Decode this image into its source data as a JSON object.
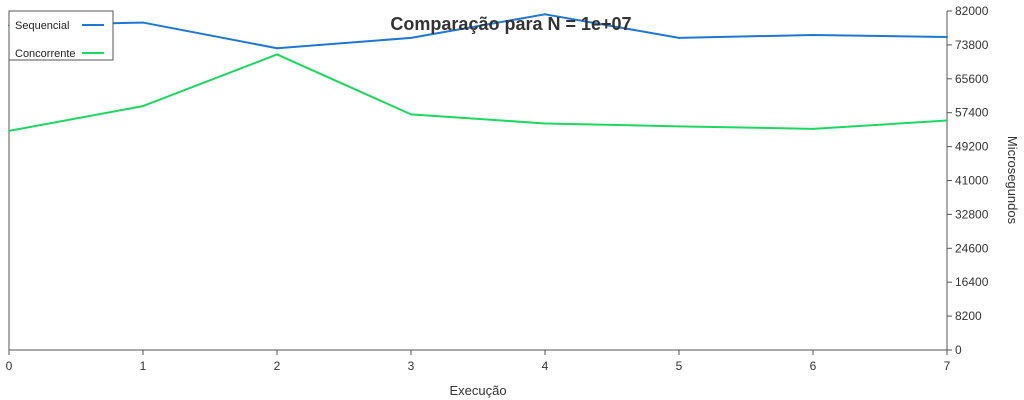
{
  "chart_data": {
    "type": "line",
    "title": "Comparação para N = 1e+07",
    "xlabel": "Execução",
    "ylabel": "Microsegundos",
    "x": [
      0,
      1,
      2,
      3,
      4,
      5,
      6,
      7
    ],
    "x_ticks": [
      "0",
      "1",
      "2",
      "3",
      "4",
      "5",
      "6",
      "7"
    ],
    "xlim": [
      0,
      7
    ],
    "y_ticks": [
      "0",
      "8200",
      "16400",
      "24600",
      "32800",
      "41000",
      "49200",
      "57400",
      "65600",
      "73800",
      "82000"
    ],
    "ylim": [
      0,
      82000
    ],
    "y_axis_side": "right",
    "grid": false,
    "legend": "top-left",
    "series": [
      {
        "name": "Sequencial",
        "color": "#1f77d4",
        "values": [
          78500,
          79200,
          73000,
          75500,
          81200,
          75500,
          76200,
          75700
        ]
      },
      {
        "name": "Concorrente",
        "color": "#1ed760",
        "values": [
          53000,
          59000,
          71500,
          57000,
          54800,
          54100,
          53500,
          55500
        ]
      }
    ]
  }
}
